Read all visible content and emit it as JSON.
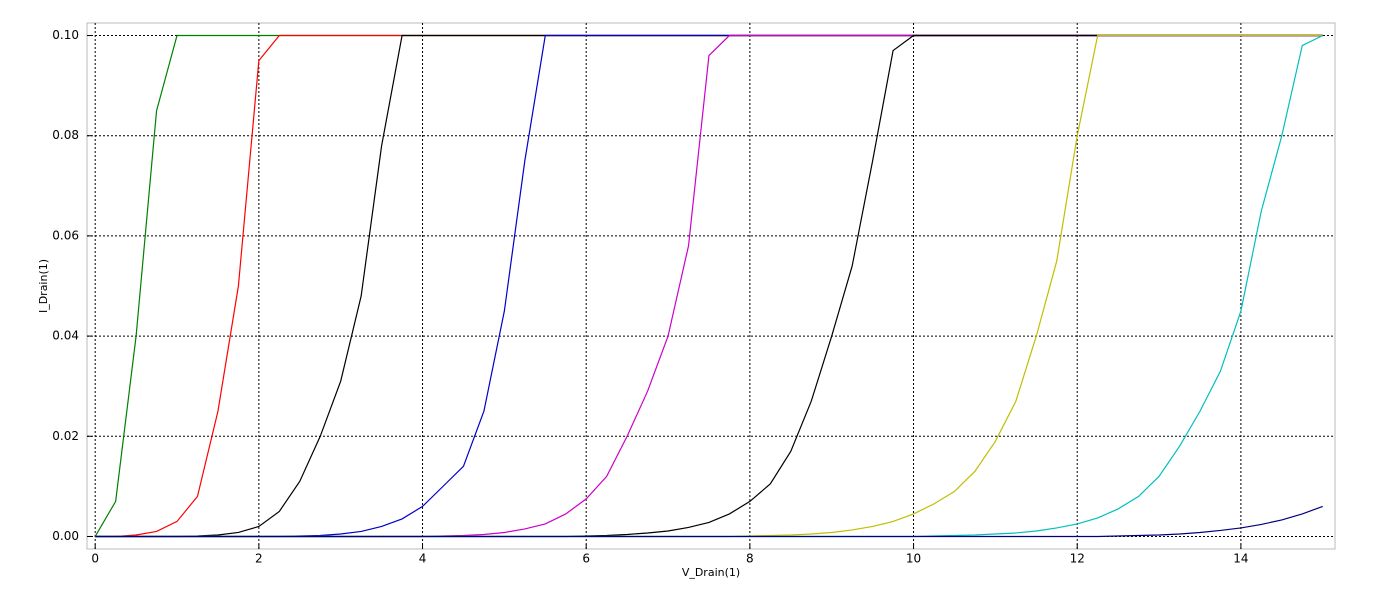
{
  "chart_data": {
    "type": "line",
    "xlabel": "V_Drain(1)",
    "ylabel": "I_Drain(1)",
    "grid": true,
    "xlim": [
      -0.1,
      15.15
    ],
    "ylim": [
      -0.0025,
      0.1025
    ],
    "xticks": [
      0,
      2,
      4,
      6,
      8,
      10,
      12,
      14
    ],
    "yticks": [
      {
        "value": 0,
        "label": "0.00"
      },
      {
        "value": 0.02,
        "label": "0.02"
      },
      {
        "value": 0.04,
        "label": "0.04"
      },
      {
        "value": 0.06,
        "label": "0.06"
      },
      {
        "value": 0.08,
        "label": "0.08"
      },
      {
        "value": 0.1,
        "label": "0.10"
      }
    ],
    "x": [
      0,
      0.25,
      0.5,
      0.75,
      1,
      1.25,
      1.5,
      1.75,
      2,
      2.25,
      2.5,
      2.75,
      3,
      3.25,
      3.5,
      3.75,
      4,
      4.25,
      4.5,
      4.75,
      5,
      5.25,
      5.5,
      5.75,
      6,
      6.25,
      6.5,
      6.75,
      7,
      7.25,
      7.5,
      7.75,
      8,
      8.25,
      8.5,
      8.75,
      9,
      9.25,
      9.5,
      9.75,
      10,
      10.25,
      10.5,
      10.75,
      11,
      11.25,
      11.5,
      11.75,
      12,
      12.25,
      12.5,
      12.75,
      13,
      13.25,
      13.5,
      13.75,
      14,
      14.25,
      14.5,
      14.75,
      15
    ],
    "series": [
      {
        "color": "#008000",
        "values": [
          0,
          0.007,
          0.04,
          0.085,
          0.1,
          0.1,
          0.1,
          0.1,
          0.1,
          0.1,
          0.1,
          0.1,
          0.1,
          0.1,
          0.1,
          0.1,
          0.1,
          0.1,
          0.1,
          0.1,
          0.1,
          0.1,
          0.1,
          0.1,
          0.1,
          0.1,
          0.1,
          0.1,
          0.1,
          0.1,
          0.1,
          0.1,
          0.1,
          0.1,
          0.1,
          0.1,
          0.1,
          0.1,
          0.1,
          0.1,
          0.1,
          0.1,
          0.1,
          0.1,
          0.1,
          0.1,
          0.1,
          0.1,
          0.1,
          0.1,
          0.1,
          0.1,
          0.1,
          0.1,
          0.1,
          0.1,
          0.1,
          0.1,
          0.1,
          0.1,
          0.1
        ]
      },
      {
        "color": "#ff0000",
        "values": [
          0,
          0,
          0.0003,
          0.001,
          0.003,
          0.008,
          0.025,
          0.05,
          0.095,
          0.1,
          0.1,
          0.1,
          0.1,
          0.1,
          0.1,
          0.1,
          0.1,
          0.1,
          0.1,
          0.1,
          0.1,
          0.1,
          0.1,
          0.1,
          0.1,
          0.1,
          0.1,
          0.1,
          0.1,
          0.1,
          0.1,
          0.1,
          0.1,
          0.1,
          0.1,
          0.1,
          0.1,
          0.1,
          0.1,
          0.1,
          0.1,
          0.1,
          0.1,
          0.1,
          0.1,
          0.1,
          0.1,
          0.1,
          0.1,
          0.1,
          0.1,
          0.1,
          0.1,
          0.1,
          0.1,
          0.1,
          0.1,
          0.1,
          0.1,
          0.1,
          0.1
        ]
      },
      {
        "color": "#000000",
        "values": [
          0,
          0,
          0,
          0,
          0,
          0.0001,
          0.0003,
          0.0008,
          0.002,
          0.005,
          0.011,
          0.02,
          0.031,
          0.048,
          0.078,
          0.1,
          0.1,
          0.1,
          0.1,
          0.1,
          0.1,
          0.1,
          0.1,
          0.1,
          0.1,
          0.1,
          0.1,
          0.1,
          0.1,
          0.1,
          0.1,
          0.1,
          0.1,
          0.1,
          0.1,
          0.1,
          0.1,
          0.1,
          0.1,
          0.1,
          0.1,
          0.1,
          0.1,
          0.1,
          0.1,
          0.1,
          0.1,
          0.1,
          0.1,
          0.1,
          0.1,
          0.1,
          0.1,
          0.1,
          0.1,
          0.1,
          0.1,
          0.1,
          0.1,
          0.1,
          0.1
        ]
      },
      {
        "color": "#0000cc",
        "values": [
          0,
          0,
          0,
          0,
          0,
          0,
          0,
          0,
          0,
          0,
          0.0001,
          0.0002,
          0.0005,
          0.001,
          0.002,
          0.0035,
          0.006,
          0.01,
          0.014,
          0.025,
          0.045,
          0.075,
          0.1,
          0.1,
          0.1,
          0.1,
          0.1,
          0.1,
          0.1,
          0.1,
          0.1,
          0.1,
          0.1,
          0.1,
          0.1,
          0.1,
          0.1,
          0.1,
          0.1,
          0.1,
          0.1,
          0.1,
          0.1,
          0.1,
          0.1,
          0.1,
          0.1,
          0.1,
          0.1,
          0.1,
          0.1,
          0.1,
          0.1,
          0.1,
          0.1,
          0.1,
          0.1,
          0.1,
          0.1,
          0.1,
          0.1
        ]
      },
      {
        "color": "#cc00cc",
        "values": [
          0,
          0,
          0,
          0,
          0,
          0,
          0,
          0,
          0,
          0,
          0,
          0,
          0,
          0,
          0,
          0,
          0,
          0.0001,
          0.0002,
          0.0004,
          0.0008,
          0.0015,
          0.0025,
          0.0045,
          0.0075,
          0.012,
          0.02,
          0.029,
          0.04,
          0.058,
          0.096,
          0.1,
          0.1,
          0.1,
          0.1,
          0.1,
          0.1,
          0.1,
          0.1,
          0.1,
          0.1,
          0.1,
          0.1,
          0.1,
          0.1,
          0.1,
          0.1,
          0.1,
          0.1,
          0.1,
          0.1,
          0.1,
          0.1,
          0.1,
          0.1,
          0.1,
          0.1,
          0.1,
          0.1,
          0.1,
          0.1
        ]
      },
      {
        "color": "#000000",
        "values": [
          0,
          0,
          0,
          0,
          0,
          0,
          0,
          0,
          0,
          0,
          0,
          0,
          0,
          0,
          0,
          0,
          0,
          0,
          0,
          0,
          0,
          0,
          0,
          0,
          0.0001,
          0.0002,
          0.0004,
          0.0007,
          0.0011,
          0.0018,
          0.0028,
          0.0045,
          0.007,
          0.0105,
          0.017,
          0.027,
          0.04,
          0.054,
          0.075,
          0.097,
          0.1,
          0.1,
          0.1,
          0.1,
          0.1,
          0.1,
          0.1,
          0.1,
          0.1,
          0.1,
          0.1,
          0.1,
          0.1,
          0.1,
          0.1,
          0.1,
          0.1,
          0.1,
          0.1,
          0.1,
          0.1
        ]
      },
      {
        "color": "#bfbf00",
        "values": [
          0,
          0,
          0,
          0,
          0,
          0,
          0,
          0,
          0,
          0,
          0,
          0,
          0,
          0,
          0,
          0,
          0,
          0,
          0,
          0,
          0,
          0,
          0,
          0,
          0,
          0,
          0,
          0,
          0,
          0,
          0,
          0,
          0.0001,
          0.0002,
          0.0003,
          0.0005,
          0.0008,
          0.0013,
          0.002,
          0.003,
          0.0045,
          0.0065,
          0.009,
          0.013,
          0.019,
          0.027,
          0.04,
          0.055,
          0.08,
          0.1,
          0.1,
          0.1,
          0.1,
          0.1,
          0.1,
          0.1,
          0.1,
          0.1,
          0.1,
          0.1,
          0.1
        ]
      },
      {
        "color": "#00bfbf",
        "values": [
          0,
          0,
          0,
          0,
          0,
          0,
          0,
          0,
          0,
          0,
          0,
          0,
          0,
          0,
          0,
          0,
          0,
          0,
          0,
          0,
          0,
          0,
          0,
          0,
          0,
          0,
          0,
          0,
          0,
          0,
          0,
          0,
          0,
          0,
          0,
          0,
          0,
          0,
          0,
          0,
          0,
          0.0001,
          0.0002,
          0.0003,
          0.0005,
          0.0007,
          0.0011,
          0.0017,
          0.0025,
          0.0037,
          0.0055,
          0.008,
          0.012,
          0.018,
          0.025,
          0.033,
          0.045,
          0.065,
          0.08,
          0.098,
          0.1
        ]
      },
      {
        "color": "#000080",
        "values": [
          0,
          0,
          0,
          0,
          0,
          0,
          0,
          0,
          0,
          0,
          0,
          0,
          0,
          0,
          0,
          0,
          0,
          0,
          0,
          0,
          0,
          0,
          0,
          0,
          0,
          0,
          0,
          0,
          0,
          0,
          0,
          0,
          0,
          0,
          0,
          0,
          0,
          0,
          0,
          0,
          0,
          0,
          0,
          0,
          0,
          0,
          0,
          0,
          0,
          0,
          0.0001,
          0.0002,
          0.0003,
          0.0005,
          0.0008,
          0.0012,
          0.0017,
          0.0024,
          0.0033,
          0.0045,
          0.006
        ]
      }
    ]
  }
}
